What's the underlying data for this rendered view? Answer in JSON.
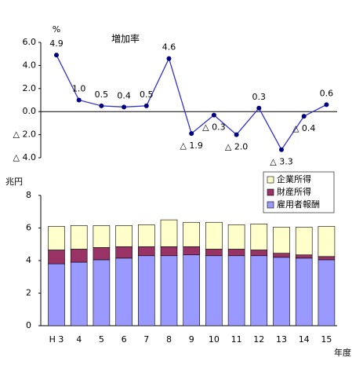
{
  "chart_data": [
    {
      "type": "line",
      "title": "増加率",
      "y_label": "%",
      "values": [
        4.9,
        1.0,
        0.5,
        0.4,
        0.5,
        4.6,
        -1.9,
        -0.3,
        -2.0,
        0.3,
        -3.3,
        -0.4,
        0.6
      ],
      "value_labels": [
        "4.9",
        "1.0",
        "0.5",
        "0.4",
        "0.5",
        "4.6",
        "△ 1.9",
        "△ 0.3",
        "△ 2.0",
        "0.3",
        "△ 3.3",
        "△ 0.4",
        "0.6"
      ],
      "color": "#3333cc",
      "marker_color": "#000080",
      "ylim": [
        -4,
        6
      ],
      "yticks": [
        {
          "value": 6,
          "label": "6.0"
        },
        {
          "value": 4,
          "label": "4.0"
        },
        {
          "value": 2,
          "label": "2.0"
        },
        {
          "value": 0,
          "label": "0.0"
        },
        {
          "value": -2,
          "label": "△ 2.0"
        },
        {
          "value": -4,
          "label": "△ 4.0"
        }
      ]
    },
    {
      "type": "stacked_bar",
      "y_label": "兆円",
      "x_label": "年度",
      "categories": [
        "H 3",
        "4",
        "5",
        "6",
        "7",
        "8",
        "9",
        "10",
        "11",
        "12",
        "13",
        "14",
        "15"
      ],
      "series": [
        {
          "name": "雇用者報酬",
          "color": "#9999ff",
          "values": [
            3.8,
            3.9,
            4.05,
            4.15,
            4.3,
            4.3,
            4.35,
            4.3,
            4.3,
            4.3,
            4.2,
            4.15,
            4.05
          ]
        },
        {
          "name": "財産所得",
          "color": "#993366",
          "values": [
            0.85,
            0.8,
            0.75,
            0.7,
            0.55,
            0.55,
            0.5,
            0.4,
            0.4,
            0.35,
            0.25,
            0.2,
            0.2
          ]
        },
        {
          "name": "企業所得",
          "color": "#ffffcc",
          "values": [
            1.45,
            1.45,
            1.35,
            1.3,
            1.35,
            1.65,
            1.5,
            1.65,
            1.5,
            1.6,
            1.6,
            1.7,
            1.85
          ]
        }
      ],
      "ylim": [
        0,
        8
      ],
      "yticks": [
        0,
        2,
        4,
        6,
        8
      ]
    }
  ]
}
